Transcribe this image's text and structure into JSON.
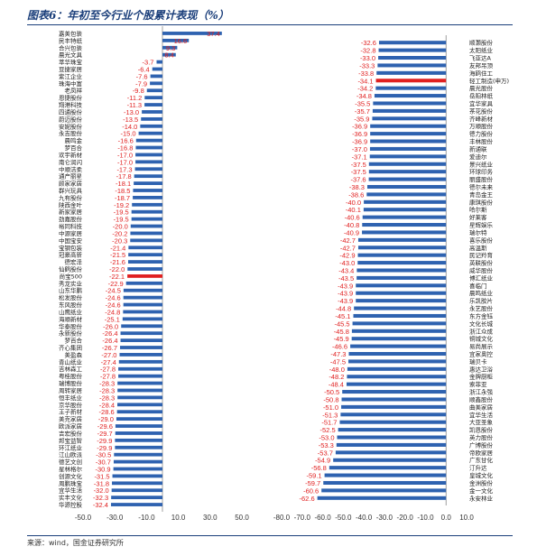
{
  "title": "图表6：年初至今行业个股累计表现（%）",
  "source": "来源：wind，国金证券研究所",
  "colors": {
    "bar": "#2e62b0",
    "highlight": "#e02020",
    "value_text": "#e02020",
    "axis": "#888888"
  },
  "chart_data": [
    {
      "type": "bar",
      "orientation": "horizontal",
      "xlim": [
        -50,
        50
      ],
      "ticks": [
        -50.0,
        -30.0,
        -10.0,
        10.0,
        30.0,
        50.0
      ],
      "tick_labels": [
        "-50.0",
        "-30.0",
        "-10.0",
        "10.0",
        "30.0",
        "50.0"
      ],
      "highlight": "尚宝500",
      "categories": [
        "嘉美包装",
        "民丰特纸",
        "合兴包装",
        "晨光文具",
        "萃华珠宝",
        "豆捷家居",
        "紫江企业",
        "珠海中富",
        "老凤祥",
        "恩捷股份",
        "翔港科技",
        "四通股份",
        "蔚迈股份",
        "安妮股份",
        "永吉股份",
        "晨鸣金",
        "梦百合",
        "欢宇新材",
        "南仑润闪",
        "中顺洁柔",
        "通产丽星",
        "顾家家居",
        "群兴玩具",
        "九有股份",
        "陕西金叶",
        "新家家居",
        "劲嘉股份",
        "裕同科技",
        "中源家居",
        "中国宝安",
        "宝钢包装",
        "冠豪高新",
        "德宏泽",
        "仙鹤股份",
        "尚宝500",
        "秀龙实业",
        "山东华鹏",
        "松发股份",
        "东风股份",
        "山鹰纸业",
        "海顺新材",
        "华泰股份",
        "永新股份",
        "梦百合",
        "齐心集团",
        "美盈森",
        "青山纸业",
        "吉林森工",
        "粤桂股份",
        "瑞博股份",
        "周转家居",
        "恒丰纸业",
        "京华股份",
        "王子新材",
        "美克家居",
        "欧派家居",
        "吉宏股份",
        "邦宝益智",
        "环江纸业",
        "江山欧派",
        "德艺文创",
        "星林格尔",
        "创源文化",
        "周鹏珠宝",
        "宜华生活",
        "实丰文化",
        "华源控股"
      ],
      "values": [
        37.4,
        16.6,
        9.3,
        8.4,
        -3.7,
        -6.4,
        -7.6,
        -7.9,
        -9.8,
        -11.2,
        -11.3,
        -13.0,
        -13.5,
        -14.0,
        -15.0,
        -16.6,
        -16.8,
        -17.0,
        -17.0,
        -17.3,
        -17.8,
        -18.1,
        -18.5,
        -18.7,
        -19.2,
        -19.5,
        -19.5,
        -20.0,
        -20.2,
        -20.3,
        -21.4,
        -21.5,
        -21.6,
        -22.0,
        -22.1,
        -22.9,
        -24.5,
        -24.6,
        -24.6,
        -24.8,
        -25.1,
        -26.0,
        -26.4,
        -26.4,
        -26.7,
        -27.0,
        -27.4,
        -27.8,
        -27.8,
        -28.3,
        -28.3,
        -28.3,
        -28.4,
        -28.6,
        -29.0,
        -29.6,
        -29.7,
        -29.9,
        -29.9,
        -30.5,
        -30.7,
        -30.9,
        -31.5,
        -31.8,
        -32.0,
        -32.3,
        -32.4
      ]
    },
    {
      "type": "bar",
      "orientation": "horizontal",
      "xlim": [
        -80,
        10
      ],
      "ticks": [
        -80.0,
        -70.0,
        -60.0,
        -50.0,
        -40.0,
        -30.0,
        -20.0,
        -10.0,
        0.0,
        10.0
      ],
      "tick_labels": [
        "-80.0",
        "-70.0",
        "-60.0",
        "-50.0",
        "-40.0",
        "-30.0",
        "-20.0",
        "-10.0",
        "0.0",
        "10.0"
      ],
      "highlight": "轻工制造(申万)",
      "categories": [
        "顺灏股份",
        "太阳纸业",
        "飞亚达A",
        "友邦吊顶",
        "海鸥住工",
        "轻工制造(申万)",
        "晨光股份",
        "岳阳林纸",
        "宜华家具",
        "茶花股份",
        "齐峰新材",
        "万顺股份",
        "德力股份",
        "丰林股份",
        "新通联",
        "爱迪尔",
        "景兴纸业",
        "环球印务",
        "丽盛股份",
        "德尔未来",
        "青岛金王",
        "康琪股份",
        "哈尔斯",
        "好莱客",
        "星辉娱乐",
        "瑞尔特",
        "喜乐股份",
        "高温斯",
        "民记羚育",
        "英联股份",
        "威华股份",
        "博汇纸业",
        "喜临门",
        "晨鸣纸业",
        "乐凯胶片",
        "永艺股份",
        "东方金钰",
        "文化长城",
        "浙江众成",
        "铜城文化",
        "易尚展示",
        "宜家奥控",
        "瑞贝卡",
        "惠达卫浴",
        "金牌厨柜",
        "索菲亚",
        "浙江永强",
        "顺鑫股份",
        "曲美家居",
        "宜华生活",
        "大亚圣象",
        "凯恩股份",
        "英力股份",
        "广博股份",
        "帝欧家居",
        "广东甘化",
        "汀升达",
        "皇城文化",
        "金洲股份",
        "金一文化",
        "永安林业"
      ],
      "values": [
        -32.6,
        -32.8,
        -33.0,
        -33.3,
        -33.8,
        -34.1,
        -34.2,
        -34.8,
        -35.5,
        -35.7,
        -35.9,
        -36.9,
        -36.9,
        -36.9,
        -37.0,
        -37.1,
        -37.5,
        -37.5,
        -37.6,
        -38.3,
        -38.6,
        -40.0,
        -40.1,
        -40.6,
        -40.8,
        -40.9,
        -42.7,
        -42.7,
        -42.9,
        -43.0,
        -43.4,
        -43.5,
        -43.9,
        -43.9,
        -43.9,
        -44.8,
        -45.1,
        -45.5,
        -45.8,
        -45.9,
        -46.6,
        -47.3,
        -47.5,
        -48.0,
        -48.2,
        -48.4,
        -50.5,
        -50.8,
        -51.0,
        -51.3,
        -51.7,
        -52.5,
        -53.0,
        -53.3,
        -53.7,
        -54.9,
        -56.8,
        -59.1,
        -59.7,
        -60.6,
        -62.6
      ]
    }
  ]
}
